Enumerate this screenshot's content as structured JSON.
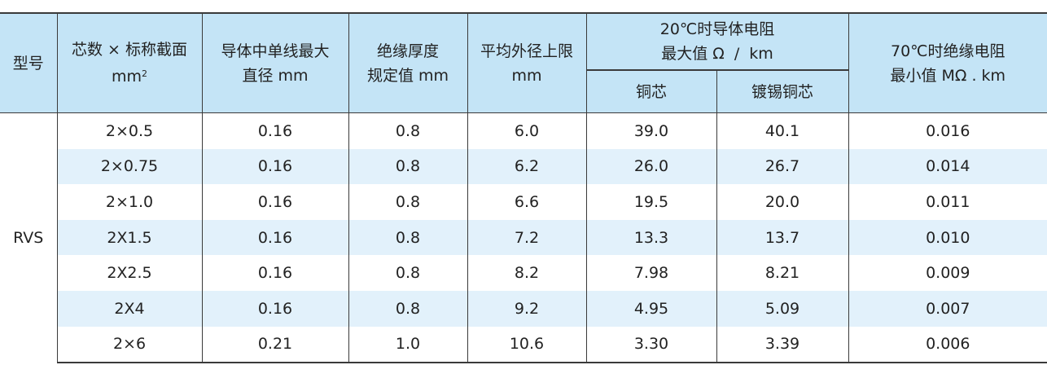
{
  "table": {
    "header": {
      "model": "型号",
      "cores": {
        "text": "芯数 × 标称截面",
        "unit": "mm",
        "sup": "2"
      },
      "diameter": [
        "导体中单线最大",
        "直径 mm"
      ],
      "insulation": [
        "绝缘厚度",
        "规定值 mm"
      ],
      "outer": [
        "平均外径上限",
        "mm"
      ],
      "resistance": {
        "title": [
          "20℃时导体电阻",
          "最大值 Ω  /  km"
        ],
        "sub": [
          "铜芯",
          "镀锡铜芯"
        ]
      },
      "insulation_resistance": [
        "70℃时绝缘电阻",
        "最小值 MΩ . km"
      ]
    },
    "model": "RVS",
    "rows": [
      [
        "2×0.5",
        "0.16",
        "0.8",
        "6.0",
        "39.0",
        "40.1",
        "0.016"
      ],
      [
        "2×0.75",
        "0.16",
        "0.8",
        "6.2",
        "26.0",
        "26.7",
        "0.014"
      ],
      [
        "2×1.0",
        "0.16",
        "0.8",
        "6.6",
        "19.5",
        "20.0",
        "0.011"
      ],
      [
        "2X1.5",
        "0.16",
        "0.8",
        "7.2",
        "13.3",
        "13.7",
        "0.010"
      ],
      [
        "2X2.5",
        "0.16",
        "0.8",
        "8.2",
        "7.98",
        "8.21",
        "0.009"
      ],
      [
        "2X4",
        "0.16",
        "0.8",
        "9.2",
        "4.95",
        "5.09",
        "0.007"
      ],
      [
        "2×6",
        "0.21",
        "1.0",
        "10.6",
        "3.30",
        "3.39",
        "0.006"
      ]
    ]
  }
}
